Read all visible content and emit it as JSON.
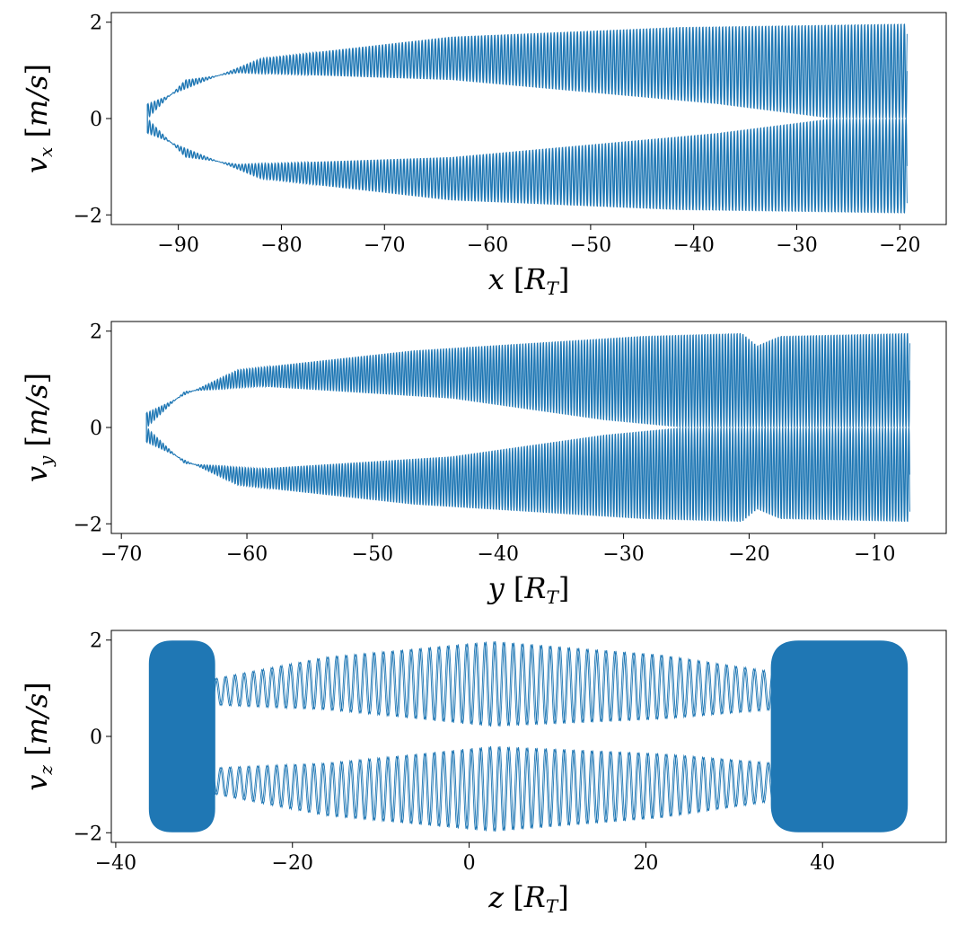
{
  "figure": {
    "colors": {
      "series": "#1f77b4",
      "axes": "#000000",
      "background": "#ffffff"
    }
  },
  "chart_data": [
    {
      "type": "line",
      "title": "",
      "xlabel": "x [R_T]",
      "ylabel": "v_x [m/s]",
      "xlabel_parts": {
        "var": "x",
        "open": " [",
        "unit": "R",
        "sub": "T",
        "close": "]"
      },
      "ylabel_parts": {
        "var": "v",
        "sub": "x",
        "open": " [",
        "unit": "m/s",
        "close": "]"
      },
      "xlim": [
        -96.5,
        -15.5
      ],
      "ylim": [
        -2.2,
        2.2
      ],
      "xticks": [
        -90,
        -80,
        -70,
        -60,
        -50,
        -40,
        -30,
        -20
      ],
      "xtick_labels": [
        "−90",
        "−80",
        "−70",
        "−60",
        "−50",
        "−40",
        "−30",
        "−20"
      ],
      "yticks": [
        -2,
        0,
        2
      ],
      "ytick_labels": [
        "−2",
        "0",
        "2"
      ],
      "grid": false,
      "series": [
        {
          "x_range": [
            -93,
            -19.3
          ],
          "amplitude_max": 1.97,
          "oscillation_cycles": 230,
          "amplitude_envelope": [
            [
              0,
              0.3
            ],
            [
              0.15,
              1.25
            ],
            [
              0.4,
              1.7
            ],
            [
              0.7,
              1.9
            ],
            [
              1.0,
              1.97
            ]
          ],
          "gap_envelope": [
            [
              0,
              0
            ],
            [
              0.05,
              0.8
            ],
            [
              0.12,
              0.95
            ],
            [
              0.4,
              0.8
            ],
            [
              0.75,
              0.3
            ],
            [
              0.9,
              0.0
            ],
            [
              1.0,
              0.0
            ]
          ]
        }
      ]
    },
    {
      "type": "line",
      "title": "",
      "xlabel": "y [R_T]",
      "ylabel": "v_y [m/s]",
      "xlabel_parts": {
        "var": "y",
        "open": " [",
        "unit": "R",
        "sub": "T",
        "close": "]"
      },
      "ylabel_parts": {
        "var": "v",
        "sub": "y",
        "open": " [",
        "unit": "m/s",
        "close": "]"
      },
      "xlim": [
        -70.8,
        -4.3
      ],
      "ylim": [
        -2.2,
        2.2
      ],
      "xticks": [
        -70,
        -60,
        -50,
        -40,
        -30,
        -20,
        -10
      ],
      "xtick_labels": [
        "−70",
        "−60",
        "−50",
        "−40",
        "−30",
        "−20",
        "−10"
      ],
      "yticks": [
        -2,
        0,
        2
      ],
      "ytick_labels": [
        "−2",
        "0",
        "2"
      ],
      "grid": false,
      "series": [
        {
          "x_range": [
            -68,
            -7.2
          ],
          "amplitude_max": 1.96,
          "oscillation_cycles": 260,
          "amplitude_envelope": [
            [
              0,
              0.3
            ],
            [
              0.12,
              1.2
            ],
            [
              0.35,
              1.6
            ],
            [
              0.65,
              1.9
            ],
            [
              0.78,
              1.96
            ],
            [
              0.8,
              1.7
            ],
            [
              0.83,
              1.9
            ],
            [
              1.0,
              1.96
            ]
          ],
          "gap_envelope": [
            [
              0,
              0
            ],
            [
              0.05,
              0.75
            ],
            [
              0.15,
              0.85
            ],
            [
              0.4,
              0.6
            ],
            [
              0.6,
              0.15
            ],
            [
              0.7,
              0.0
            ],
            [
              1.0,
              0.0
            ]
          ]
        }
      ]
    },
    {
      "type": "line",
      "title": "",
      "xlabel": "z [R_T]",
      "ylabel": "v_z [m/s]",
      "xlabel_parts": {
        "var": "z",
        "open": " [",
        "unit": "R",
        "sub": "T",
        "close": "]"
      },
      "ylabel_parts": {
        "var": "v",
        "sub": "z",
        "open": " [",
        "unit": "m/s",
        "close": "]"
      },
      "xlim": [
        -40.5,
        54
      ],
      "ylim": [
        -2.2,
        2.2
      ],
      "xticks": [
        -40,
        -20,
        0,
        20,
        40
      ],
      "xtick_labels": [
        "−40",
        "−20",
        "0",
        "20",
        "40"
      ],
      "yticks": [
        -2,
        0,
        2
      ],
      "ytick_labels": [
        "−2",
        "0",
        "2"
      ],
      "grid": false,
      "filled_regions": [
        {
          "x_range": [
            -36.2,
            -28.8
          ],
          "v_range": [
            -1.98,
            1.98
          ]
        },
        {
          "x_range": [
            34.2,
            49.6
          ],
          "v_range": [
            -1.98,
            1.98
          ]
        }
      ],
      "series": [
        {
          "x_range": [
            -28.8,
            34.2
          ],
          "amplitude_max": 1.98,
          "oscillation_cycles": 60,
          "amplitude_envelope": [
            [
              0,
              1.2
            ],
            [
              0.2,
              1.65
            ],
            [
              0.5,
              1.98
            ],
            [
              0.8,
              1.7
            ],
            [
              1.0,
              1.35
            ]
          ],
          "gap_envelope": [
            [
              0,
              0.65
            ],
            [
              0.2,
              0.55
            ],
            [
              0.5,
              0.2
            ],
            [
              0.8,
              0.35
            ],
            [
              1.0,
              0.55
            ]
          ]
        }
      ]
    }
  ]
}
